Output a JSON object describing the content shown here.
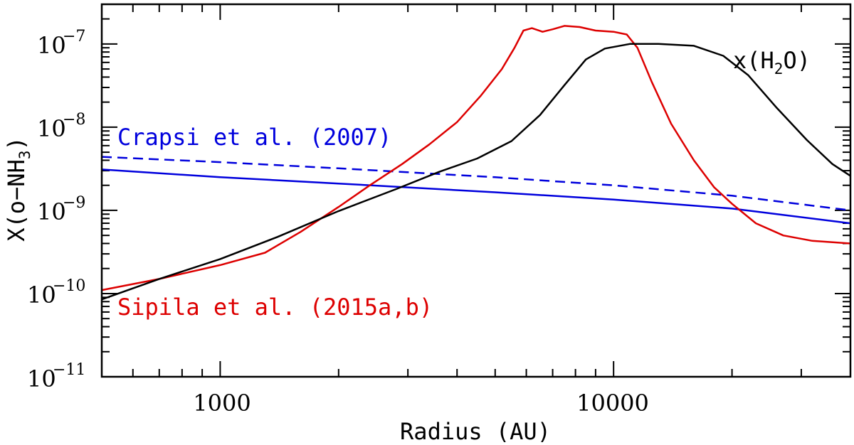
{
  "chart_data": {
    "type": "line",
    "xlabel": "Radius (AU)",
    "ylabel": {
      "prefix": "X(o−NH",
      "sub": "3",
      "suffix": ")"
    },
    "xscale": "log",
    "yscale": "log",
    "xlim": [
      500,
      40000
    ],
    "ylim": [
      1e-11,
      3e-07
    ],
    "x_ticks": [
      {
        "value": 1000,
        "label": "1000"
      },
      {
        "value": 10000,
        "label": "10000"
      }
    ],
    "y_ticks": [
      {
        "value": 1e-11,
        "base": "10",
        "exp": "−11"
      },
      {
        "value": 1e-10,
        "base": "10",
        "exp": "−10"
      },
      {
        "value": 1e-09,
        "base": "10",
        "exp": "−9"
      },
      {
        "value": 1e-08,
        "base": "10",
        "exp": "−8"
      },
      {
        "value": 1e-07,
        "base": "10",
        "exp": "−7"
      }
    ],
    "series": [
      {
        "name": "Crapsi et al. (2007) (dashed)",
        "color": "#0000dd",
        "dash": true,
        "x": [
          500,
          1000,
          2000,
          5000,
          10000,
          20000,
          40000
        ],
        "y": [
          4.4e-09,
          3.8e-09,
          3.2e-09,
          2.5e-09,
          2e-09,
          1.5e-09,
          1e-09
        ]
      },
      {
        "name": "Crapsi et al. (2007)",
        "color": "#0000dd",
        "dash": false,
        "x": [
          500,
          1000,
          2000,
          5000,
          10000,
          20000,
          40000
        ],
        "y": [
          3.1e-09,
          2.5e-09,
          2.1e-09,
          1.65e-09,
          1.35e-09,
          1.05e-09,
          7e-10
        ]
      },
      {
        "name": "Sipila et al. (2015a,b)",
        "color": "#dd0000",
        "dash": false,
        "x": [
          500,
          700,
          1000,
          1300,
          1600,
          2000,
          2400,
          2900,
          3400,
          4000,
          4600,
          5200,
          5600,
          5900,
          6200,
          6600,
          7000,
          7500,
          8200,
          9000,
          10000,
          10800,
          11500,
          12500,
          14000,
          16000,
          18000,
          20000,
          23000,
          27000,
          32000,
          40000
        ],
        "y": [
          1.1e-10,
          1.5e-10,
          2.2e-10,
          3.1e-10,
          5.5e-10,
          1.1e-09,
          2e-09,
          3.6e-09,
          6.2e-09,
          1.15e-08,
          2.4e-08,
          5e-08,
          9e-08,
          1.45e-07,
          1.55e-07,
          1.4e-07,
          1.5e-07,
          1.65e-07,
          1.6e-07,
          1.45e-07,
          1.4e-07,
          1.3e-07,
          9e-08,
          3.5e-08,
          1.1e-08,
          4e-09,
          1.9e-09,
          1.2e-09,
          7e-10,
          5e-10,
          4.3e-10,
          4e-10
        ]
      },
      {
        "name": "x(H2O)",
        "color": "#000000",
        "dash": false,
        "x": [
          500,
          700,
          1000,
          1400,
          2000,
          2800,
          3600,
          4500,
          5500,
          6500,
          7500,
          8500,
          9500,
          11000,
          13000,
          16000,
          19000,
          22000,
          26000,
          31000,
          36000,
          40000
        ],
        "y": [
          8.5e-11,
          1.5e-10,
          2.6e-10,
          4.8e-10,
          9.8e-10,
          1.8e-09,
          2.9e-09,
          4.2e-09,
          6.8e-09,
          1.4e-08,
          3.2e-08,
          6.5e-08,
          8.8e-08,
          1e-07,
          1e-07,
          9.5e-08,
          7.2e-08,
          4.2e-08,
          1.7e-08,
          7e-09,
          3.6e-09,
          2.6e-09
        ]
      }
    ],
    "annotations": {
      "crapsi": {
        "text": "Crapsi et al. (2007)",
        "color": "#0000dd"
      },
      "sipila": {
        "text": "Sipila et al. (2015a,b)",
        "color": "#dd0000"
      },
      "h2o": {
        "prefix": "x(H",
        "sub": "2",
        "suffix": "O)",
        "color": "#000000"
      }
    }
  }
}
